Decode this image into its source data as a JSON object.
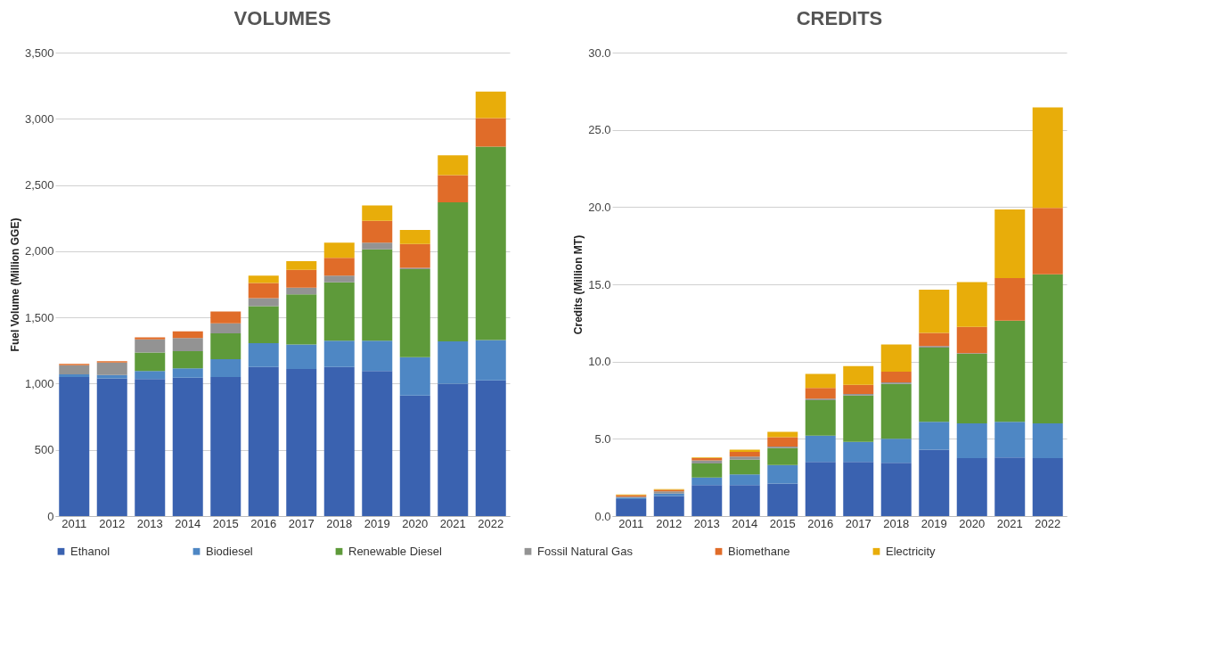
{
  "chart_data": [
    {
      "type": "bar",
      "title": "VOLUMES",
      "ylabel": "Fuel Volume (Million GGE)",
      "stacked": true,
      "grid": "y",
      "legend": "bottom",
      "categories": [
        "2011",
        "2012",
        "2013",
        "2014",
        "2015",
        "2016",
        "2017",
        "2018",
        "2019",
        "2020",
        "2021",
        "2022"
      ],
      "ylim": [
        0,
        3500
      ],
      "yticks": [
        {
          "value": 0,
          "label": "0"
        },
        {
          "value": 500,
          "label": "500"
        },
        {
          "value": 1000,
          "label": "1,000"
        },
        {
          "value": 1500,
          "label": "1,500"
        },
        {
          "value": 2000,
          "label": "2,000"
        },
        {
          "value": 2500,
          "label": "2,500"
        },
        {
          "value": 3000,
          "label": "3,000"
        },
        {
          "value": 3500,
          "label": "3,500"
        }
      ],
      "series": [
        {
          "name": "Ethanol",
          "color": "#3a62b0",
          "values": [
            1050,
            1040,
            1035,
            1045,
            1050,
            1125,
            1110,
            1125,
            1095,
            910,
            1000,
            1025
          ]
        },
        {
          "name": "Biodiesel",
          "color": "#4e87c4",
          "values": [
            20,
            25,
            60,
            70,
            135,
            180,
            185,
            200,
            230,
            290,
            320,
            305
          ]
        },
        {
          "name": "Renewable Diesel",
          "color": "#5e9a3a",
          "values": [
            0,
            0,
            140,
            130,
            195,
            280,
            380,
            440,
            690,
            665,
            1050,
            1460
          ]
        },
        {
          "name": "Fossil Natural Gas",
          "color": "#939393",
          "values": [
            70,
            95,
            100,
            100,
            75,
            60,
            50,
            50,
            50,
            10,
            0,
            0
          ]
        },
        {
          "name": "Biomethane",
          "color": "#e06c29",
          "values": [
            10,
            10,
            15,
            50,
            90,
            115,
            135,
            135,
            165,
            180,
            205,
            215
          ]
        },
        {
          "name": "Electricity",
          "color": "#e8ad0a",
          "values": [
            null,
            null,
            null,
            null,
            null,
            55,
            65,
            115,
            115,
            105,
            150,
            200
          ]
        }
      ]
    },
    {
      "type": "bar",
      "title": "CREDITS",
      "ylabel": "Credits (Million  MT)",
      "stacked": true,
      "grid": "y",
      "legend": "bottom",
      "categories": [
        "2011",
        "2012",
        "2013",
        "2014",
        "2015",
        "2016",
        "2017",
        "2018",
        "2019",
        "2020",
        "2021",
        "2022"
      ],
      "ylim": [
        0,
        30
      ],
      "yticks": [
        {
          "value": 0,
          "label": "0.0"
        },
        {
          "value": 5,
          "label": "5.0"
        },
        {
          "value": 10,
          "label": "10.0"
        },
        {
          "value": 15,
          "label": "15.0"
        },
        {
          "value": 20,
          "label": "20.0"
        },
        {
          "value": 25,
          "label": "25.0"
        },
        {
          "value": 30,
          "label": "30.0"
        }
      ],
      "series": [
        {
          "name": "Ethanol",
          "color": "#3a62b0",
          "values": [
            1.1,
            1.3,
            2.0,
            2.0,
            2.1,
            3.5,
            3.5,
            3.45,
            4.3,
            3.75,
            3.8,
            3.75
          ]
        },
        {
          "name": "Biodiesel",
          "color": "#4e87c4",
          "values": [
            0.1,
            0.15,
            0.5,
            0.7,
            1.2,
            1.7,
            1.3,
            1.55,
            1.8,
            2.25,
            2.3,
            2.25
          ]
        },
        {
          "name": "Renewable Diesel",
          "color": "#5e9a3a",
          "values": [
            0,
            0,
            0.9,
            0.95,
            1.1,
            2.3,
            3.0,
            3.55,
            4.8,
            4.5,
            6.55,
            9.65
          ]
        },
        {
          "name": "Fossil Natural Gas",
          "color": "#939393",
          "values": [
            0.05,
            0.15,
            0.2,
            0.2,
            0.1,
            0.1,
            0.1,
            0.1,
            0.1,
            0.05,
            0,
            0
          ]
        },
        {
          "name": "Biomethane",
          "color": "#e06c29",
          "values": [
            0.1,
            0.1,
            0.15,
            0.3,
            0.6,
            0.7,
            0.6,
            0.7,
            0.85,
            1.7,
            2.75,
            4.3
          ]
        },
        {
          "name": "Electricity",
          "color": "#e8ad0a",
          "values": [
            0.05,
            0.05,
            0.05,
            0.15,
            0.35,
            0.9,
            1.2,
            1.75,
            2.8,
            2.9,
            4.45,
            6.5
          ]
        }
      ]
    }
  ]
}
